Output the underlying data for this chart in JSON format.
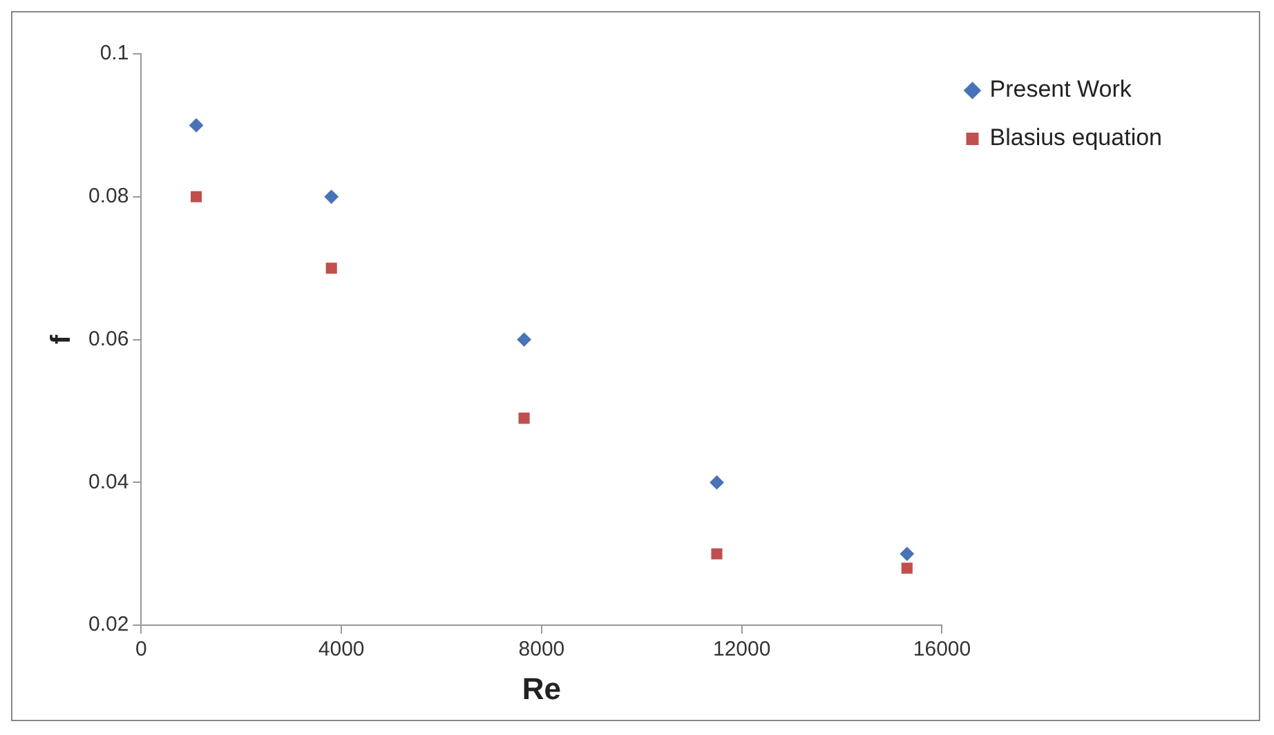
{
  "chart_data": {
    "type": "scatter",
    "xlabel": "Re",
    "ylabel": "f",
    "xlim": [
      0,
      16000
    ],
    "xticks": [
      0,
      4000,
      8000,
      12000,
      16000
    ],
    "ylim": [
      0.02,
      0.1
    ],
    "yticks": [
      0.02,
      0.04,
      0.06,
      0.08,
      0.1
    ],
    "grid": false,
    "legend": "top right",
    "series": [
      {
        "name": "Present Work",
        "color": "#4a72b8",
        "marker": "diamond",
        "x": [
          1100,
          3800,
          7650,
          11500,
          15300
        ],
        "values": [
          0.09,
          0.08,
          0.06,
          0.04,
          0.03
        ]
      },
      {
        "name": "Blasius equation",
        "color": "#c0504d",
        "marker": "square",
        "x": [
          1100,
          3800,
          7650,
          11500,
          15300
        ],
        "values": [
          0.08,
          0.07,
          0.049,
          0.03,
          0.028
        ]
      }
    ]
  }
}
